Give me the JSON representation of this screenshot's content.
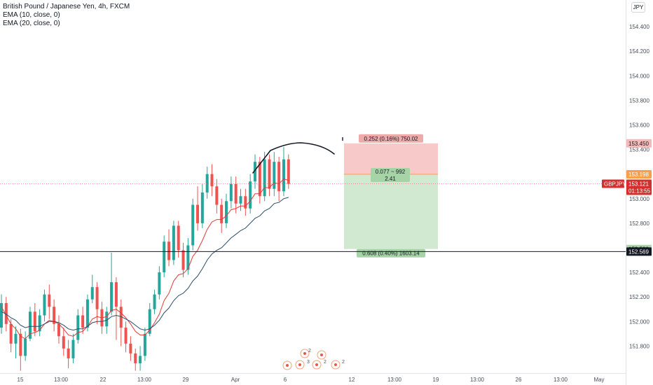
{
  "legend": {
    "title": "British Pound / Japanese Yen, 4h, FXCM",
    "ema10": "EMA (10, close, 0)",
    "ema20": "EMA (20, close, 0)"
  },
  "currency_badge": "JPY",
  "colors": {
    "up": "#26a69a",
    "down": "#ef5350",
    "ema10": "#e53935",
    "ema20": "#2a4d69",
    "target_zone": "#d1e9d1",
    "stop_zone": "#f7c9c9",
    "target_label_bg": "#a6d4a6",
    "stop_label_bg": "#eea9a9",
    "entry_line": "#f6a04d",
    "last_price_bg": "#d32f2f"
  },
  "chart_data": {
    "type": "candlestick",
    "symbol": "GBPJPY",
    "timeframe": "4h",
    "ylim": [
      151.58,
      154.56
    ],
    "y_ticks": [
      "154.400",
      "154.200",
      "154.000",
      "153.800",
      "153.600",
      "153.400",
      "153.000",
      "152.800",
      "152.400",
      "152.200",
      "152.000",
      "151.800"
    ],
    "x_ticks": [
      "15",
      "13:00",
      "22",
      "13:00",
      "29",
      "Apr",
      "6",
      "12",
      "13:00",
      "19",
      "13:00",
      "26",
      "13:00",
      "May"
    ],
    "candles": [
      [
        151.95,
        152.15,
        152.22,
        151.9
      ],
      [
        152.15,
        151.98,
        152.2,
        151.92
      ],
      [
        151.98,
        151.82,
        152.02,
        151.75
      ],
      [
        151.82,
        151.9,
        151.96,
        151.7
      ],
      [
        151.9,
        151.72,
        151.94,
        151.6
      ],
      [
        151.72,
        151.86,
        151.92,
        151.68
      ],
      [
        151.86,
        152.08,
        152.12,
        151.84
      ],
      [
        152.08,
        151.92,
        152.15,
        151.88
      ],
      [
        151.92,
        152.05,
        152.1,
        151.88
      ],
      [
        152.05,
        152.22,
        152.26,
        152.0
      ],
      [
        152.22,
        152.12,
        152.3,
        152.02
      ],
      [
        152.12,
        151.98,
        152.18,
        151.92
      ],
      [
        151.98,
        151.88,
        152.05,
        151.82
      ],
      [
        151.88,
        151.78,
        151.95,
        151.72
      ],
      [
        151.78,
        151.7,
        151.85,
        151.62
      ],
      [
        151.7,
        151.85,
        151.9,
        151.66
      ],
      [
        151.85,
        152.05,
        152.1,
        151.82
      ],
      [
        152.05,
        151.95,
        152.12,
        151.9
      ],
      [
        151.95,
        152.18,
        152.22,
        151.92
      ],
      [
        152.18,
        152.28,
        152.38,
        152.15
      ],
      [
        152.28,
        152.1,
        152.32,
        151.98
      ],
      [
        152.1,
        151.96,
        152.16,
        151.9
      ],
      [
        151.96,
        152.08,
        152.12,
        151.9
      ],
      [
        152.08,
        152.32,
        152.56,
        152.05
      ],
      [
        152.32,
        152.12,
        152.36,
        151.85
      ],
      [
        152.12,
        151.95,
        152.18,
        151.8
      ],
      [
        151.95,
        151.82,
        152.0,
        151.75
      ],
      [
        151.82,
        151.74,
        151.88,
        151.68
      ],
      [
        151.74,
        151.66,
        151.78,
        151.6
      ],
      [
        151.66,
        151.72,
        151.8,
        151.6
      ],
      [
        151.72,
        151.9,
        151.95,
        151.68
      ],
      [
        151.9,
        152.1,
        152.15,
        151.88
      ],
      [
        152.1,
        152.22,
        152.26,
        152.06
      ],
      [
        152.22,
        152.4,
        152.45,
        152.18
      ],
      [
        152.4,
        152.65,
        152.7,
        152.36
      ],
      [
        152.65,
        152.5,
        152.75,
        152.45
      ],
      [
        152.5,
        152.78,
        152.82,
        152.46
      ],
      [
        152.78,
        152.58,
        152.82,
        152.52
      ],
      [
        152.58,
        152.42,
        152.64,
        152.36
      ],
      [
        152.42,
        152.62,
        152.68,
        152.38
      ],
      [
        152.62,
        152.95,
        153.0,
        152.58
      ],
      [
        152.95,
        152.8,
        153.1,
        152.74
      ],
      [
        152.8,
        153.05,
        153.12,
        152.76
      ],
      [
        153.05,
        153.2,
        153.26,
        153.0
      ],
      [
        153.2,
        153.1,
        153.28,
        153.02
      ],
      [
        153.1,
        152.95,
        153.16,
        152.88
      ],
      [
        152.95,
        152.8,
        153.0,
        152.72
      ],
      [
        152.8,
        152.98,
        153.04,
        152.76
      ],
      [
        152.98,
        153.12,
        153.18,
        152.92
      ],
      [
        153.12,
        152.96,
        153.18,
        152.88
      ],
      [
        152.96,
        153.02,
        153.08,
        152.9
      ],
      [
        153.02,
        152.92,
        153.08,
        152.86
      ],
      [
        152.92,
        153.14,
        153.2,
        152.88
      ],
      [
        153.14,
        153.3,
        153.36,
        153.08
      ],
      [
        153.3,
        153.02,
        153.34,
        152.96
      ],
      [
        153.02,
        153.32,
        153.38,
        152.98
      ],
      [
        153.32,
        153.08,
        153.36,
        153.02
      ],
      [
        153.08,
        153.3,
        153.38,
        153.02
      ],
      [
        153.3,
        153.06,
        153.34,
        152.98
      ],
      [
        153.06,
        153.32,
        153.42,
        153.02
      ],
      [
        153.32,
        153.12,
        153.36,
        153.08
      ]
    ],
    "ema10": [
      152.12,
      152.05,
      151.98,
      151.94,
      151.88,
      151.86,
      151.9,
      151.91,
      151.93,
      151.98,
      152.01,
      152.0,
      151.98,
      151.94,
      151.89,
      151.88,
      151.91,
      151.92,
      151.96,
      152.02,
      152.04,
      152.03,
      152.04,
      152.09,
      152.1,
      152.07,
      152.03,
      151.98,
      151.92,
      151.89,
      151.89,
      151.93,
      151.99,
      152.06,
      152.17,
      152.23,
      152.33,
      152.38,
      152.39,
      152.43,
      152.53,
      152.58,
      152.66,
      152.75,
      152.81,
      152.83,
      152.83,
      152.86,
      152.91,
      152.92,
      152.94,
      152.94,
      152.98,
      153.04,
      153.04,
      153.09,
      153.09,
      153.13,
      153.12,
      153.16,
      153.15
    ],
    "ema20": [
      152.08,
      152.06,
      152.03,
      152.01,
      151.97,
      151.95,
      151.96,
      151.96,
      151.96,
      151.98,
      152.0,
      152.0,
      151.99,
      151.97,
      151.94,
      151.93,
      151.94,
      151.94,
      151.96,
      151.99,
      152.0,
      152.0,
      152.01,
      152.04,
      152.05,
      152.04,
      152.02,
      152.0,
      151.97,
      151.94,
      151.93,
      151.94,
      151.97,
      152.01,
      152.07,
      152.11,
      152.17,
      152.21,
      152.23,
      152.27,
      152.33,
      152.37,
      152.43,
      152.5,
      152.55,
      152.58,
      152.6,
      152.64,
      152.68,
      152.71,
      152.74,
      152.76,
      152.8,
      152.84,
      152.86,
      152.9,
      152.92,
      152.96,
      152.97,
      153.0,
      153.01
    ],
    "position": {
      "type": "long",
      "entry": 153.198,
      "target": 152.59,
      "stop": 153.45,
      "target_label": "0.608 (0.40%) 1603.14",
      "stop_label": "0.252 (0.16%) 750.02",
      "center_label_1": "0.077 ~ 992",
      "center_label_2": "2.41"
    },
    "horizontal_line": 152.569,
    "last_price": 153.121,
    "price_labels": {
      "stop": "153.450",
      "entry": "153.198",
      "last": "153.121",
      "countdown": "01:13:55",
      "symbol": "GBPJPY",
      "target": "152.590",
      "hline": "152.569"
    },
    "event_markers": [
      "2",
      "3",
      "2",
      "2"
    ]
  }
}
